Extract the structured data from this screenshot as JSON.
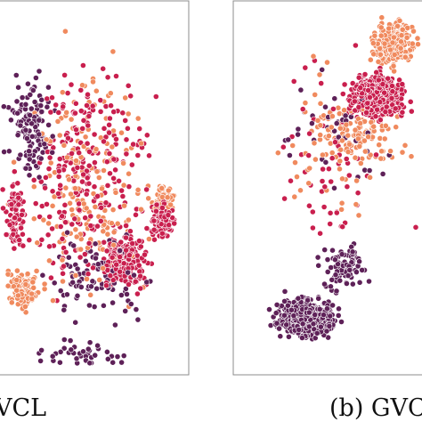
{
  "captions": {
    "left": "VCL",
    "right": "(b) GVC"
  },
  "palette": {
    "dark_purple": "#5e2158",
    "crimson": "#c91f4e",
    "orange": "#f08a5e",
    "point_edge": "#ffffff",
    "frame": "#8c8c8c"
  },
  "chart_data": [
    {
      "type": "scatter",
      "title": "",
      "xlabel": "",
      "ylabel": "",
      "grid": false,
      "legend": "none",
      "series": [
        {
          "color": "dark_purple",
          "clusters": [
            {
              "x": [
                -60,
                -20
              ],
              "y": [
                -5,
                70
              ],
              "n": 120
            },
            {
              "x": [
                -40,
                50
              ],
              "y": [
                -80,
                -20
              ],
              "n": 90
            },
            {
              "x": [
                -60,
                40
              ],
              "y": [
                -100,
                -80
              ],
              "n": 40
            }
          ]
        },
        {
          "color": "crimson",
          "clusters": [
            {
              "x": [
                -60,
                50
              ],
              "y": [
                -80,
                90
              ],
              "n": 260
            },
            {
              "x": [
                0,
                40
              ],
              "y": [
                -60,
                -20
              ],
              "n": 220
            },
            {
              "x": [
                35,
                55
              ],
              "y": [
                -30,
                -5
              ],
              "n": 120
            },
            {
              "x": [
                -60,
                -40
              ],
              "y": [
                -40,
                10
              ],
              "n": 70
            }
          ]
        },
        {
          "color": "orange",
          "clusters": [
            {
              "x": [
                -60,
                50
              ],
              "y": [
                -90,
                90
              ],
              "n": 200
            },
            {
              "x": [
                -60,
                -30
              ],
              "y": [
                -70,
                -40
              ],
              "n": 110
            },
            {
              "x": [
                35,
                55
              ],
              "y": [
                -15,
                5
              ],
              "n": 60
            }
          ]
        }
      ]
    },
    {
      "type": "scatter",
      "title": "",
      "xlabel": "",
      "ylabel": "",
      "grid": false,
      "legend": "none",
      "series": [
        {
          "color": "dark_purple",
          "clusters": [
            {
              "x": [
                -40,
                10
              ],
              "y": [
                -85,
                -55
              ],
              "n": 420
            },
            {
              "x": [
                -10,
                30
              ],
              "y": [
                -60,
                -25
              ],
              "n": 90
            },
            {
              "x": [
                -50,
                60
              ],
              "y": [
                -20,
                90
              ],
              "n": 40
            }
          ]
        },
        {
          "color": "crimson",
          "clusters": [
            {
              "x": [
                10,
                55
              ],
              "y": [
                35,
                65
              ],
              "n": 650
            },
            {
              "x": [
                -50,
                60
              ],
              "y": [
                -60,
                90
              ],
              "n": 60
            }
          ]
        },
        {
          "color": "orange",
          "clusters": [
            {
              "x": [
                25,
                60
              ],
              "y": [
                62,
                95
              ],
              "n": 300
            },
            {
              "x": [
                -20,
                60
              ],
              "y": [
                10,
                50
              ],
              "n": 110
            },
            {
              "x": [
                -50,
                60
              ],
              "y": [
                -40,
                90
              ],
              "n": 60
            }
          ]
        }
      ]
    }
  ]
}
